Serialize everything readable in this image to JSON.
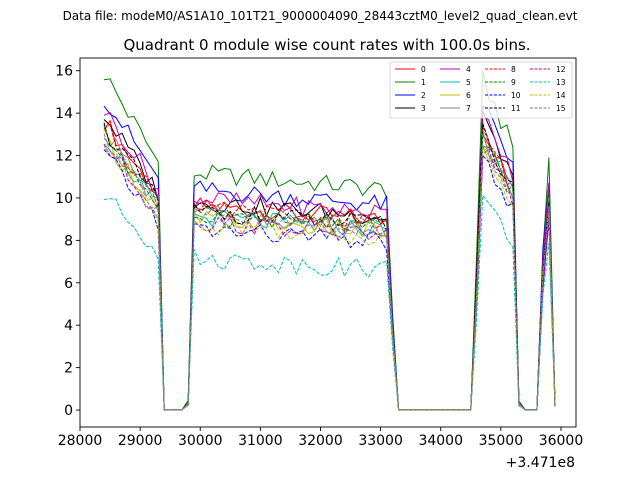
{
  "chart_data": {
    "type": "line",
    "suptitle": "Data file: modeM0/AS1A10_101T21_9000004090_28443cztM0_level2_quad_clean.evt",
    "title": "Quadrant 0 module wise count rates with 100.0s bins.",
    "xlabel": "",
    "ylabel": "",
    "x_offset_label": "+3.471e8",
    "xlim": [
      28000,
      36250
    ],
    "ylim": [
      -0.8,
      16.6
    ],
    "xticks": [
      28000,
      29000,
      30000,
      31000,
      32000,
      33000,
      34000,
      35000,
      36000
    ],
    "xtick_labels": [
      "28000",
      "29000",
      "30000",
      "31000",
      "32000",
      "33000",
      "34000",
      "35000",
      "36000"
    ],
    "yticks": [
      0,
      2,
      4,
      6,
      8,
      10,
      12,
      14,
      16
    ],
    "ytick_labels": [
      "0",
      "2",
      "4",
      "6",
      "8",
      "10",
      "12",
      "14",
      "16"
    ],
    "legend_position": "upper right",
    "legend_columns": 4,
    "series": [
      {
        "name": "0",
        "color": "#ff0000",
        "dash": "solid",
        "base": 11.2
      },
      {
        "name": "1",
        "color": "#008000",
        "dash": "solid",
        "base": 13.0
      },
      {
        "name": "2",
        "color": "#0000ff",
        "dash": "solid",
        "base": 12.1
      },
      {
        "name": "3",
        "color": "#000000",
        "dash": "solid",
        "base": 11.4
      },
      {
        "name": "4",
        "color": "#bf00bf",
        "dash": "solid",
        "base": 11.6
      },
      {
        "name": "5",
        "color": "#00bfbf",
        "dash": "solid",
        "base": 10.6
      },
      {
        "name": "6",
        "color": "#bfbf00",
        "dash": "solid",
        "base": 10.5
      },
      {
        "name": "7",
        "color": "#808080",
        "dash": "solid",
        "base": 10.8
      },
      {
        "name": "8",
        "color": "#ff0000",
        "dash": "dashed",
        "base": 11.0
      },
      {
        "name": "9",
        "color": "#008000",
        "dash": "dashed",
        "base": 10.7
      },
      {
        "name": "10",
        "color": "#0000ff",
        "dash": "dashed",
        "base": 9.9
      },
      {
        "name": "11",
        "color": "#000000",
        "dash": "dashed",
        "base": 10.9
      },
      {
        "name": "12",
        "color": "#bf00bf",
        "dash": "dashed",
        "base": 10.3
      },
      {
        "name": "13",
        "color": "#00bfbf",
        "dash": "dashed",
        "base": 8.3
      },
      {
        "name": "14",
        "color": "#bfbf00",
        "dash": "dashed",
        "base": 10.2
      },
      {
        "name": "15",
        "color": "#808080",
        "dash": "dashed",
        "base": 10.6
      }
    ],
    "time_segments": [
      {
        "start": 28400,
        "end": 29300,
        "shape": "decline",
        "from": 1.22,
        "to": 0.9
      },
      {
        "start": 29400,
        "end": 29400,
        "shape": "zero"
      },
      {
        "start": 29500,
        "end": 29700,
        "shape": "zero"
      },
      {
        "start": 29800,
        "end": 29800,
        "shape": "low",
        "from": 0.03,
        "to": 0.03
      },
      {
        "start": 29900,
        "end": 33100,
        "shape": "plateau",
        "from": 0.86,
        "to": 0.8
      },
      {
        "start": 33200,
        "end": 33200,
        "shape": "drop",
        "from": 0.35,
        "to": 0.35
      },
      {
        "start": 33300,
        "end": 34500,
        "shape": "zero"
      },
      {
        "start": 34600,
        "end": 34600,
        "shape": "rise",
        "from": 0.55,
        "to": 0.55
      },
      {
        "start": 34700,
        "end": 35200,
        "shape": "decline",
        "from": 1.2,
        "to": 0.95
      },
      {
        "start": 35300,
        "end": 35300,
        "shape": "low",
        "from": 0.03,
        "to": 0.03
      },
      {
        "start": 35400,
        "end": 35600,
        "shape": "zero"
      },
      {
        "start": 35700,
        "end": 35700,
        "shape": "rise",
        "from": 0.6,
        "to": 0.6
      },
      {
        "start": 35800,
        "end": 35800,
        "shape": "peak",
        "from": 0.9,
        "to": 0.9
      },
      {
        "start": 35900,
        "end": 35900,
        "shape": "low",
        "from": 0.02,
        "to": 0.02
      }
    ]
  }
}
